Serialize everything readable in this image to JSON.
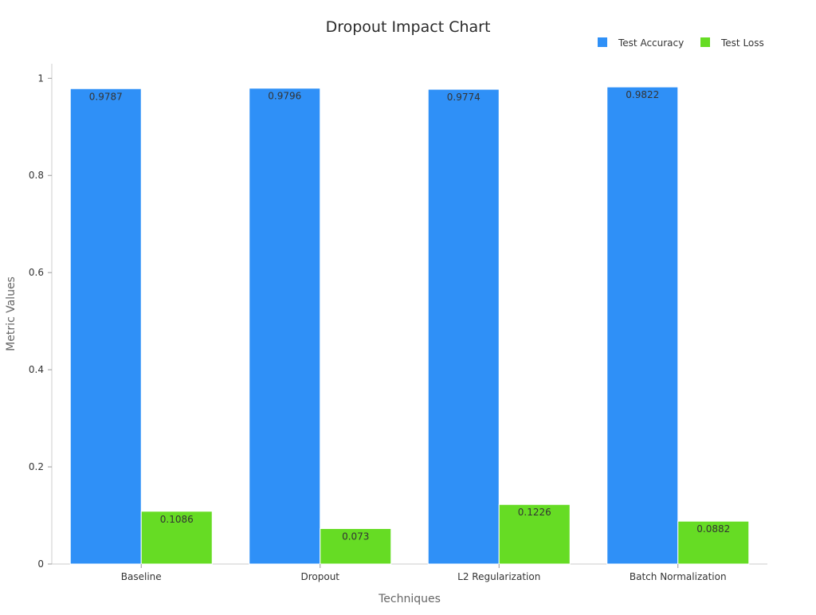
{
  "chart_data": {
    "type": "bar",
    "title": "Dropout Impact Chart",
    "xlabel": "Techniques",
    "ylabel": "Metric Values",
    "categories": [
      "Baseline",
      "Dropout",
      "L2 Regularization",
      "Batch Normalization"
    ],
    "series": [
      {
        "name": "Test Accuracy",
        "color": "#2f90f7",
        "values": [
          0.9787,
          0.9796,
          0.9774,
          0.9822
        ],
        "labels": [
          "0.9787",
          "0.9796",
          "0.9774",
          "0.9822"
        ]
      },
      {
        "name": "Test Loss",
        "color": "#66dc24",
        "values": [
          0.1086,
          0.073,
          0.1226,
          0.0882
        ],
        "labels": [
          "0.1086",
          "0.073",
          "0.1226",
          "0.0882"
        ]
      }
    ],
    "ylim": [
      0,
      1.03
    ],
    "yticks": [
      0,
      0.2,
      0.4,
      0.6,
      0.8,
      1
    ],
    "ytick_labels": [
      "0",
      "0.2",
      "0.4",
      "0.6",
      "0.8",
      "1"
    ],
    "grid": false,
    "legend_position": "top-right"
  }
}
